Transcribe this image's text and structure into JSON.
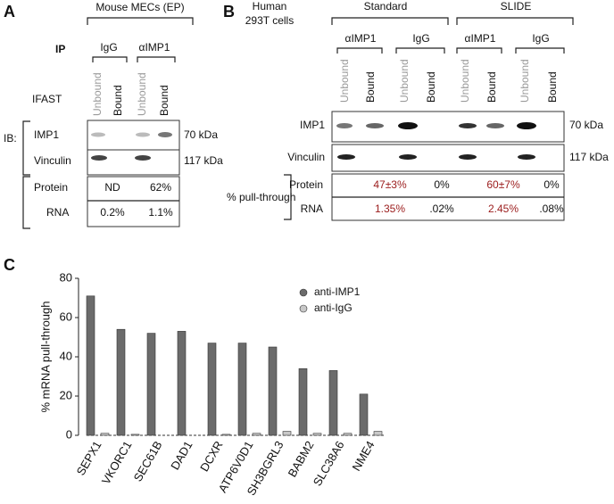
{
  "panel_a": {
    "label": "A",
    "header": "Mouse MECs (EP)",
    "ip_label": "IP",
    "groups": [
      "IgG",
      "αIMP1"
    ],
    "method": "IFAST",
    "lanes": [
      "Unbound",
      "Bound",
      "Unbound",
      "Bound"
    ],
    "ib_label": "IB:",
    "blots": [
      {
        "name": "IMP1",
        "size": "70 kDa"
      },
      {
        "name": "Vinculin",
        "size": "117 kDa"
      }
    ],
    "table": {
      "rows": [
        [
          "Protein",
          "ND",
          "62%"
        ],
        [
          "RNA",
          "0.2%",
          "1.1%"
        ]
      ]
    }
  },
  "panel_b": {
    "label": "B",
    "cells": [
      "Human",
      "293T cells"
    ],
    "methods": [
      "Standard",
      "SLIDE"
    ],
    "groups": [
      "αIMP1",
      "IgG",
      "αIMP1",
      "IgG"
    ],
    "lanes": [
      "Unbound",
      "Bound",
      "Unbound",
      "Bound",
      "Unbound",
      "Bound",
      "Unbound",
      "Bound"
    ],
    "blots": [
      {
        "name": "IMP1",
        "size": "70 kDa"
      },
      {
        "name": "Vinculin",
        "size": "117 kDa"
      }
    ],
    "table": {
      "title": "% pull-through",
      "rows": [
        [
          "Protein",
          "47±3%",
          "0%",
          "60±7%",
          "0%"
        ],
        [
          "RNA",
          "1.35%",
          ".02%",
          "2.45%",
          ".08%"
        ]
      ]
    }
  },
  "chart_data": {
    "type": "bar",
    "panel_label": "C",
    "y_label": "% mRNA pull-through",
    "categories": [
      "SEPX1",
      "VKORC1",
      "SEC61B",
      "DAD1",
      "DCXR",
      "ATP6V0D1",
      "SH3BGRL3",
      "BABM2",
      "SLC38A6",
      "NME4"
    ],
    "series": [
      {
        "name": "anti-IMP1",
        "color": "#6b6b6b",
        "values": [
          71,
          54,
          52,
          53,
          47,
          47,
          45,
          34,
          33,
          21
        ]
      },
      {
        "name": "anti-IgG",
        "color": "#c8c8c8",
        "values": [
          1,
          0.5,
          0,
          0,
          0.5,
          1,
          2,
          1,
          1,
          2
        ]
      }
    ],
    "ylim": [
      0,
      80
    ],
    "yticks": [
      0,
      20,
      40,
      60,
      80
    ]
  }
}
